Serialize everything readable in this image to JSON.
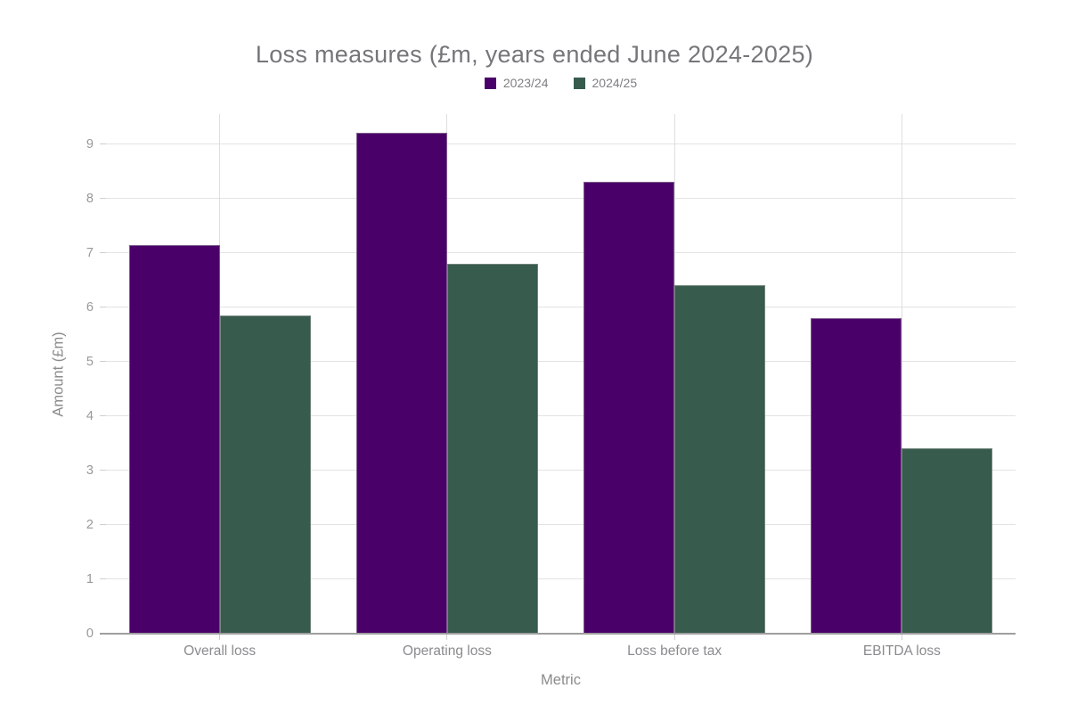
{
  "chart_data": {
    "type": "bar",
    "title": "Loss measures (£m, years ended June 2024-2025)",
    "xlabel": "Metric",
    "ylabel": "Amount (£m)",
    "categories": [
      "Overall loss",
      "Operating loss",
      "Loss before tax",
      "EBITDA loss"
    ],
    "series": [
      {
        "name": "2023/24",
        "color": "#4A0069",
        "values": [
          7.15,
          9.2,
          8.3,
          5.8
        ]
      },
      {
        "name": "2024/25",
        "color": "#375B4D",
        "values": [
          5.85,
          6.8,
          6.4,
          3.4
        ]
      }
    ],
    "yticks": [
      0,
      1,
      2,
      3,
      4,
      5,
      6,
      7,
      8,
      9
    ],
    "ylim": [
      0,
      9.55
    ],
    "grid": true,
    "legend_position": "top-center",
    "colors": {
      "series_2023_24": "#4A0069",
      "series_2024_25": "#375B4D",
      "gridline": "#E3E3E4",
      "axis_line": "#9E9E9E",
      "title_text": "#75767A",
      "axis_text": "#8B8B8E",
      "tick_text": "#98989B"
    }
  }
}
